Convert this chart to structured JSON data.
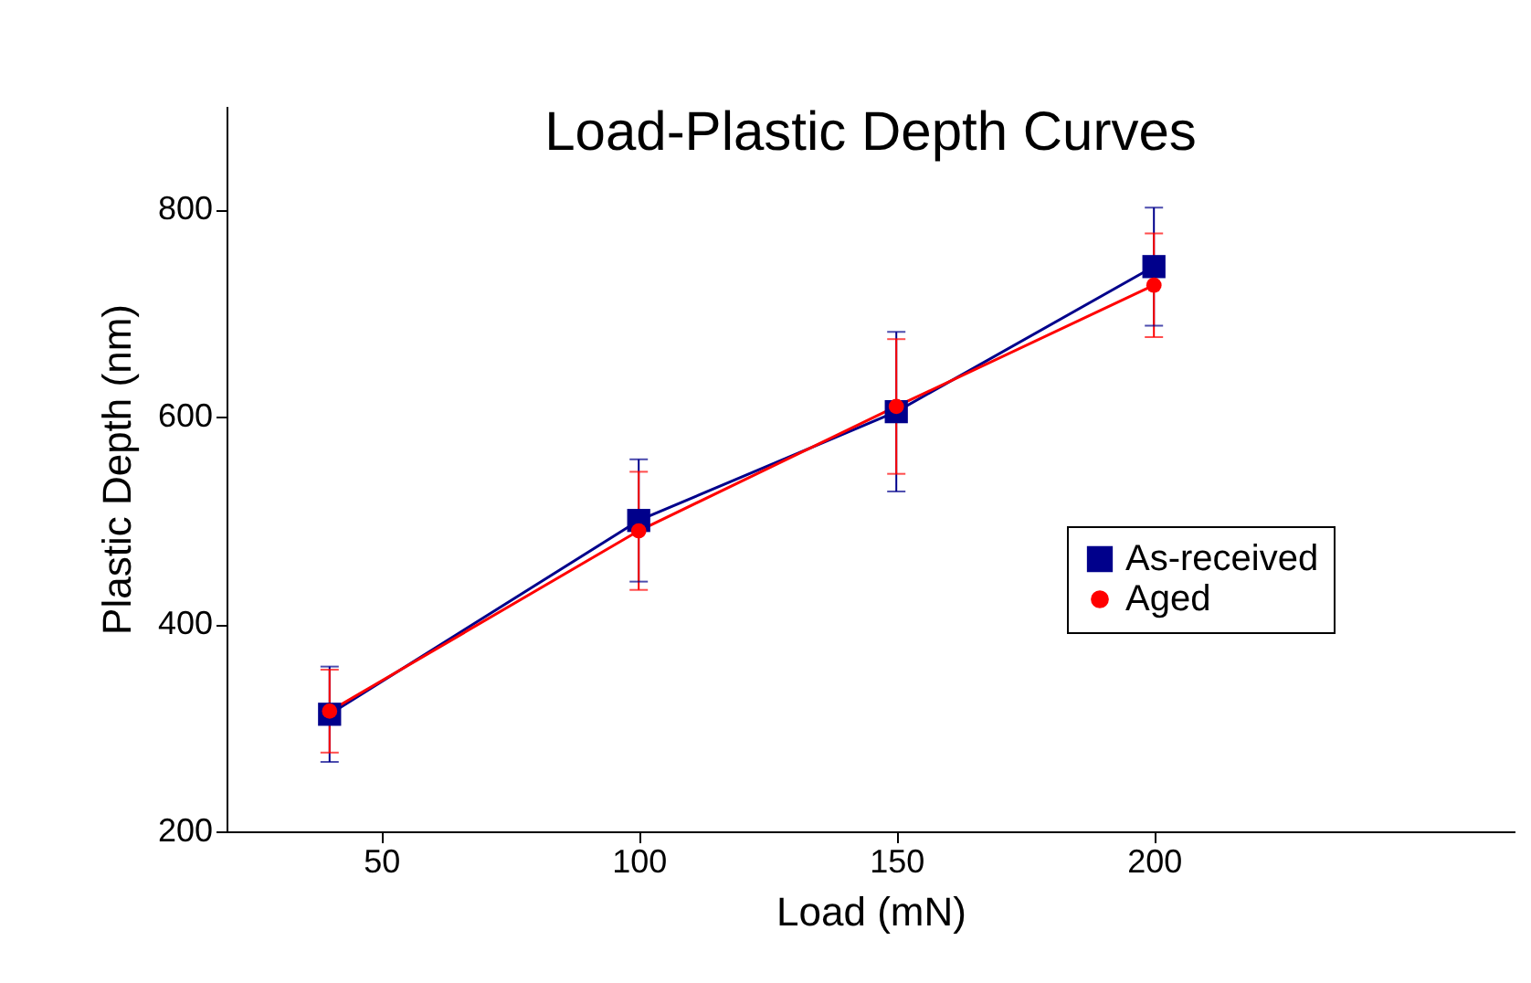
{
  "chart_data": {
    "type": "line",
    "title": "Load-Plastic Depth Curves",
    "xlabel": "Load (mN)",
    "ylabel": "Plastic Depth (nm)",
    "x": [
      40,
      100,
      150,
      200
    ],
    "series": [
      {
        "name": "As-received",
        "color": "#00008b",
        "marker": "square",
        "values": [
          313,
          500,
          605,
          745
        ],
        "errors": [
          46,
          59,
          77,
          57
        ]
      },
      {
        "name": "Aged",
        "color": "#ff0000",
        "marker": "circle",
        "values": [
          316,
          490,
          610,
          727
        ],
        "errors": [
          40,
          57,
          65,
          50
        ]
      }
    ],
    "xlim": [
      20,
      270
    ],
    "xticks": [
      50,
      100,
      150,
      200
    ],
    "ylim": [
      200,
      900
    ],
    "yticks": [
      200,
      400,
      600,
      800
    ],
    "grid": false,
    "legend": "right",
    "line_style": "solid"
  }
}
